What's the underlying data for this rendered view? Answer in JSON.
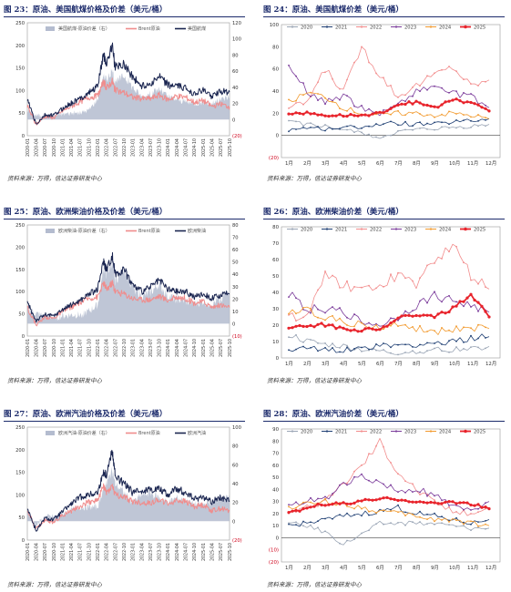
{
  "colors": {
    "title": "#1b2a6b",
    "navy": "#1a2550",
    "salmon": "#f08c8c",
    "area": "#b4bccf",
    "y2020": "#9aa5b5",
    "y2021": "#1f3f73",
    "y2022": "#f28c8c",
    "y2023": "#7a3a9a",
    "y2024": "#f29a2e",
    "y2025": "#e8232b",
    "neg": "#d0021b"
  },
  "panels": [
    {
      "id": "p23",
      "title": "图 23：原油、美国航煤价格及价差（美元/桶）",
      "source": "资料来源：万得，信达证券研发中心"
    },
    {
      "id": "p24",
      "title": "图 24：原油、美国航煤价差（美元/桶）",
      "source": "资料来源：万得，信达证券研发中心"
    },
    {
      "id": "p25",
      "title": "图 25：原油、欧洲柴油价格及价差（美元/桶）",
      "source": "资料来源：万得，信达证券研发中心"
    },
    {
      "id": "p26",
      "title": "图 26：原油、欧洲柴油价差（美元/桶）",
      "source": "资料来源：万得，信达证券研发中心"
    },
    {
      "id": "p27",
      "title": "图 27：原油、欧洲汽油价格及价差（美元/桶）",
      "source": "资料来源：万得，信达证券研发中心"
    },
    {
      "id": "p28",
      "title": "图 28：原油、欧洲汽油价差（美元/桶）",
      "source": "资料来源：万得，信达证券研发中心"
    }
  ],
  "chart_data": [
    {
      "id": "p23",
      "type": "area",
      "legend": [
        "美国航煤-原油价差（右）",
        "Brent原油",
        "美国航煤"
      ],
      "x_ticks": [
        "2020-01",
        "2020-04",
        "2020-07",
        "2020-10",
        "2021-01",
        "2021-04",
        "2021-07",
        "2021-10",
        "2022-01",
        "2022-04",
        "2022-07",
        "2022-10",
        "2023-01",
        "2023-04",
        "2023-07",
        "2023-10",
        "2024-01",
        "2024-04",
        "2024-07",
        "2024-10",
        "2025-01",
        "2025-04",
        "2025-07",
        "2025-10"
      ],
      "y_left": {
        "min": 0,
        "max": 250,
        "ticks": [
          0,
          50,
          100,
          150,
          200,
          250
        ]
      },
      "y_right": {
        "min": -20,
        "max": 120,
        "ticks": [
          "(20)",
          "0",
          "20",
          "40",
          "60",
          "80",
          "100",
          "120"
        ]
      },
      "x": [
        "2020-01",
        "2020-04",
        "2020-07",
        "2020-10",
        "2021-01",
        "2021-04",
        "2021-07",
        "2021-10",
        "2022-01",
        "2022-03",
        "2022-04",
        "2022-06",
        "2022-07",
        "2022-10",
        "2023-01",
        "2023-04",
        "2023-07",
        "2023-10",
        "2024-01",
        "2024-04",
        "2024-07",
        "2024-10",
        "2025-01",
        "2025-04",
        "2025-07",
        "2025-10"
      ],
      "series": [
        {
          "name": "美国航煤-原油价差（右）",
          "kind": "area",
          "axis": "right",
          "values": [
            12,
            5,
            5,
            5,
            7,
            8,
            8,
            12,
            25,
            55,
            50,
            60,
            45,
            55,
            40,
            28,
            32,
            38,
            28,
            25,
            22,
            20,
            22,
            20,
            25,
            28
          ]
        },
        {
          "name": "Brent原油",
          "kind": "line",
          "axis": "left",
          "values": [
            65,
            25,
            43,
            40,
            55,
            65,
            75,
            85,
            88,
            120,
            105,
            120,
            100,
            95,
            85,
            82,
            82,
            90,
            80,
            88,
            85,
            74,
            78,
            65,
            70,
            64
          ]
        },
        {
          "name": "美国航煤",
          "kind": "line",
          "axis": "left",
          "values": [
            80,
            25,
            45,
            45,
            60,
            72,
            82,
            95,
            110,
            180,
            160,
            200,
            150,
            160,
            130,
            110,
            115,
            130,
            112,
            110,
            105,
            94,
            100,
            88,
            98,
            97
          ]
        }
      ]
    },
    {
      "id": "p24",
      "type": "line",
      "legend": [
        "2020",
        "2021",
        "2022",
        "2023",
        "2024",
        "2025"
      ],
      "x_ticks": [
        "1月",
        "2月",
        "3月",
        "4月",
        "5月",
        "6月",
        "7月",
        "8月",
        "9月",
        "10月",
        "11月",
        "12月"
      ],
      "y": {
        "min": -20,
        "max": 100,
        "ticks": [
          "(20)",
          "0",
          "20",
          "40",
          "60",
          "80",
          "100"
        ]
      },
      "months": [
        1,
        2,
        3,
        4,
        5,
        6,
        7,
        8,
        9,
        10,
        11,
        12
      ],
      "series": [
        {
          "name": "2020",
          "values": [
            12,
            10,
            8,
            5,
            2,
            -2,
            3,
            5,
            6,
            7,
            8,
            10
          ]
        },
        {
          "name": "2021",
          "values": [
            5,
            7,
            6,
            7,
            8,
            10,
            11,
            10,
            10,
            12,
            13,
            15
          ]
        },
        {
          "name": "2022",
          "values": [
            25,
            30,
            60,
            40,
            80,
            55,
            35,
            45,
            55,
            62,
            45,
            50
          ]
        },
        {
          "name": "2023",
          "values": [
            62,
            40,
            30,
            35,
            25,
            20,
            28,
            40,
            45,
            38,
            35,
            25
          ]
        },
        {
          "name": "2024",
          "values": [
            30,
            38,
            35,
            25,
            20,
            18,
            20,
            20,
            18,
            20,
            18,
            15
          ]
        },
        {
          "name": "2025",
          "values": [
            20,
            20,
            18,
            18,
            18,
            20,
            28,
            30,
            25,
            32,
            30,
            22
          ]
        }
      ]
    },
    {
      "id": "p25",
      "type": "area",
      "legend": [
        "欧洲柴油-原油价差（右）",
        "Brent原油",
        "欧洲柴油"
      ],
      "x_ticks": [
        "2020-01",
        "2020-04",
        "2020-07",
        "2020-10",
        "2021-01",
        "2021-04",
        "2021-07",
        "2021-10",
        "2022-01",
        "2022-04",
        "2022-07",
        "2022-10",
        "2023-01",
        "2023-04",
        "2023-07",
        "2023-10",
        "2024-01",
        "2024-04",
        "2024-07",
        "2024-10",
        "2025-01",
        "2025-04",
        "2025-07",
        "2025-10"
      ],
      "y_left": {
        "min": 0,
        "max": 250,
        "ticks": [
          0,
          50,
          100,
          150,
          200,
          250
        ]
      },
      "y_right": {
        "min": -10,
        "max": 80,
        "ticks": [
          "(10)",
          "0",
          "10",
          "20",
          "30",
          "40",
          "50",
          "60",
          "70",
          "80"
        ]
      },
      "x": [
        "2020-01",
        "2020-04",
        "2020-07",
        "2020-10",
        "2021-01",
        "2021-04",
        "2021-07",
        "2021-10",
        "2022-01",
        "2022-03",
        "2022-04",
        "2022-06",
        "2022-07",
        "2022-10",
        "2023-01",
        "2023-04",
        "2023-07",
        "2023-10",
        "2024-01",
        "2024-04",
        "2024-07",
        "2024-10",
        "2025-01",
        "2025-04",
        "2025-07",
        "2025-10"
      ],
      "series": [
        {
          "name": "欧洲柴油-原油价差（右）",
          "kind": "area",
          "axis": "right",
          "values": [
            12,
            8,
            6,
            5,
            6,
            7,
            7,
            10,
            15,
            45,
            40,
            50,
            35,
            45,
            30,
            22,
            25,
            32,
            22,
            20,
            18,
            16,
            18,
            16,
            20,
            28
          ]
        },
        {
          "name": "Brent原油",
          "kind": "line",
          "axis": "left",
          "values": [
            65,
            25,
            43,
            40,
            55,
            65,
            75,
            85,
            88,
            120,
            105,
            120,
            100,
            95,
            85,
            82,
            82,
            90,
            80,
            88,
            85,
            74,
            78,
            65,
            70,
            64
          ]
        },
        {
          "name": "欧洲柴油",
          "kind": "line",
          "axis": "left",
          "values": [
            75,
            35,
            48,
            45,
            60,
            70,
            80,
            95,
            105,
            170,
            150,
            180,
            140,
            150,
            115,
            100,
            110,
            125,
            105,
            100,
            100,
            88,
            95,
            85,
            92,
            95
          ]
        }
      ]
    },
    {
      "id": "p26",
      "type": "line",
      "legend": [
        "2020",
        "2021",
        "2022",
        "2023",
        "2024",
        "2025"
      ],
      "x_ticks": [
        "1月",
        "2月",
        "3月",
        "4月",
        "5月",
        "6月",
        "7月",
        "8月",
        "9月",
        "10月",
        "11月",
        "12月"
      ],
      "y": {
        "min": 0,
        "max": 80,
        "ticks": [
          0,
          10,
          20,
          30,
          40,
          50,
          60,
          70,
          80
        ]
      },
      "months": [
        1,
        2,
        3,
        4,
        5,
        6,
        7,
        8,
        9,
        10,
        11,
        12
      ],
      "series": [
        {
          "name": "2020",
          "values": [
            14,
            10,
            8,
            7,
            5,
            4,
            3,
            4,
            5,
            5,
            6,
            7
          ]
        },
        {
          "name": "2021",
          "values": [
            5,
            6,
            5,
            5,
            6,
            7,
            8,
            8,
            9,
            10,
            12,
            13
          ]
        },
        {
          "name": "2022",
          "values": [
            25,
            25,
            50,
            45,
            40,
            45,
            50,
            45,
            60,
            68,
            50,
            42
          ]
        },
        {
          "name": "2023",
          "values": [
            40,
            30,
            30,
            28,
            22,
            20,
            25,
            32,
            38,
            35,
            32,
            28
          ]
        },
        {
          "name": "2024",
          "values": [
            28,
            30,
            25,
            22,
            20,
            18,
            20,
            18,
            16,
            17,
            18,
            18
          ]
        },
        {
          "name": "2025",
          "values": [
            18,
            20,
            20,
            18,
            17,
            18,
            24,
            27,
            25,
            30,
            38,
            25
          ]
        }
      ]
    },
    {
      "id": "p27",
      "type": "area",
      "legend": [
        "欧洲汽油-原油价差（右）",
        "Brent原油",
        "欧洲汽油"
      ],
      "x_ticks": [
        "2020-01",
        "2020-04",
        "2020-07",
        "2020-10",
        "2021-01",
        "2021-04",
        "2021-07",
        "2021-10",
        "2022-01",
        "2022-04",
        "2022-07",
        "2022-10",
        "2023-01",
        "2023-04",
        "2023-07",
        "2023-10",
        "2024-01",
        "2024-04",
        "2024-07",
        "2024-10",
        "2025-01",
        "2025-04",
        "2025-07",
        "2025-10"
      ],
      "y_left": {
        "min": 0,
        "max": 250,
        "ticks": [
          0,
          50,
          100,
          150,
          200,
          250
        ]
      },
      "y_right": {
        "min": -20,
        "max": 100,
        "ticks": [
          "(20)",
          "0",
          "20",
          "40",
          "60",
          "80",
          "100"
        ]
      },
      "x": [
        "2020-01",
        "2020-04",
        "2020-07",
        "2020-10",
        "2021-01",
        "2021-04",
        "2021-07",
        "2021-10",
        "2022-01",
        "2022-03",
        "2022-04",
        "2022-06",
        "2022-07",
        "2022-10",
        "2023-01",
        "2023-04",
        "2023-07",
        "2023-10",
        "2024-01",
        "2024-04",
        "2024-07",
        "2024-10",
        "2025-01",
        "2025-04",
        "2025-07",
        "2025-10"
      ],
      "series": [
        {
          "name": "欧洲汽油-原油价差（右）",
          "kind": "area",
          "axis": "right",
          "values": [
            10,
            -5,
            5,
            5,
            8,
            12,
            15,
            15,
            15,
            35,
            40,
            55,
            40,
            30,
            20,
            28,
            30,
            25,
            20,
            25,
            22,
            18,
            18,
            20,
            25,
            24
          ]
        },
        {
          "name": "Brent原油",
          "kind": "line",
          "axis": "left",
          "values": [
            65,
            25,
            43,
            40,
            55,
            65,
            75,
            85,
            88,
            120,
            105,
            120,
            100,
            95,
            85,
            82,
            82,
            90,
            80,
            88,
            85,
            74,
            78,
            65,
            70,
            64
          ]
        },
        {
          "name": "欧洲汽油",
          "kind": "line",
          "axis": "left",
          "values": [
            72,
            20,
            48,
            45,
            63,
            80,
            95,
            100,
            105,
            150,
            145,
            200,
            140,
            125,
            105,
            110,
            112,
            115,
            100,
            115,
            105,
            90,
            95,
            85,
            95,
            87
          ]
        }
      ]
    },
    {
      "id": "p28",
      "type": "line",
      "legend": [
        "2020",
        "2021",
        "2022",
        "2023",
        "2024",
        "2025"
      ],
      "x_ticks": [
        "1月",
        "2月",
        "3月",
        "4月",
        "5月",
        "6月",
        "7月",
        "8月",
        "9月",
        "10月",
        "11月",
        "12月"
      ],
      "y": {
        "min": -20,
        "max": 90,
        "ticks": [
          "(20)",
          "(10)",
          "0",
          "10",
          "20",
          "30",
          "40",
          "50",
          "60",
          "70",
          "80",
          "90"
        ]
      },
      "months": [
        1,
        2,
        3,
        4,
        5,
        6,
        7,
        8,
        9,
        10,
        11,
        12
      ],
      "series": [
        {
          "name": "2020",
          "values": [
            12,
            10,
            5,
            -5,
            3,
            12,
            12,
            12,
            12,
            10,
            8,
            8
          ]
        },
        {
          "name": "2021",
          "values": [
            10,
            12,
            15,
            18,
            20,
            22,
            25,
            20,
            18,
            15,
            12,
            15
          ]
        },
        {
          "name": "2022",
          "values": [
            22,
            25,
            30,
            45,
            60,
            80,
            55,
            40,
            30,
            22,
            20,
            25
          ]
        },
        {
          "name": "2023",
          "values": [
            28,
            30,
            32,
            45,
            50,
            45,
            38,
            40,
            35,
            25,
            22,
            30
          ]
        },
        {
          "name": "2024",
          "values": [
            25,
            28,
            30,
            28,
            25,
            22,
            20,
            18,
            15,
            15,
            12,
            10
          ]
        },
        {
          "name": "2025",
          "values": [
            20,
            25,
            28,
            28,
            30,
            32,
            32,
            30,
            28,
            30,
            28,
            24
          ]
        }
      ]
    }
  ]
}
